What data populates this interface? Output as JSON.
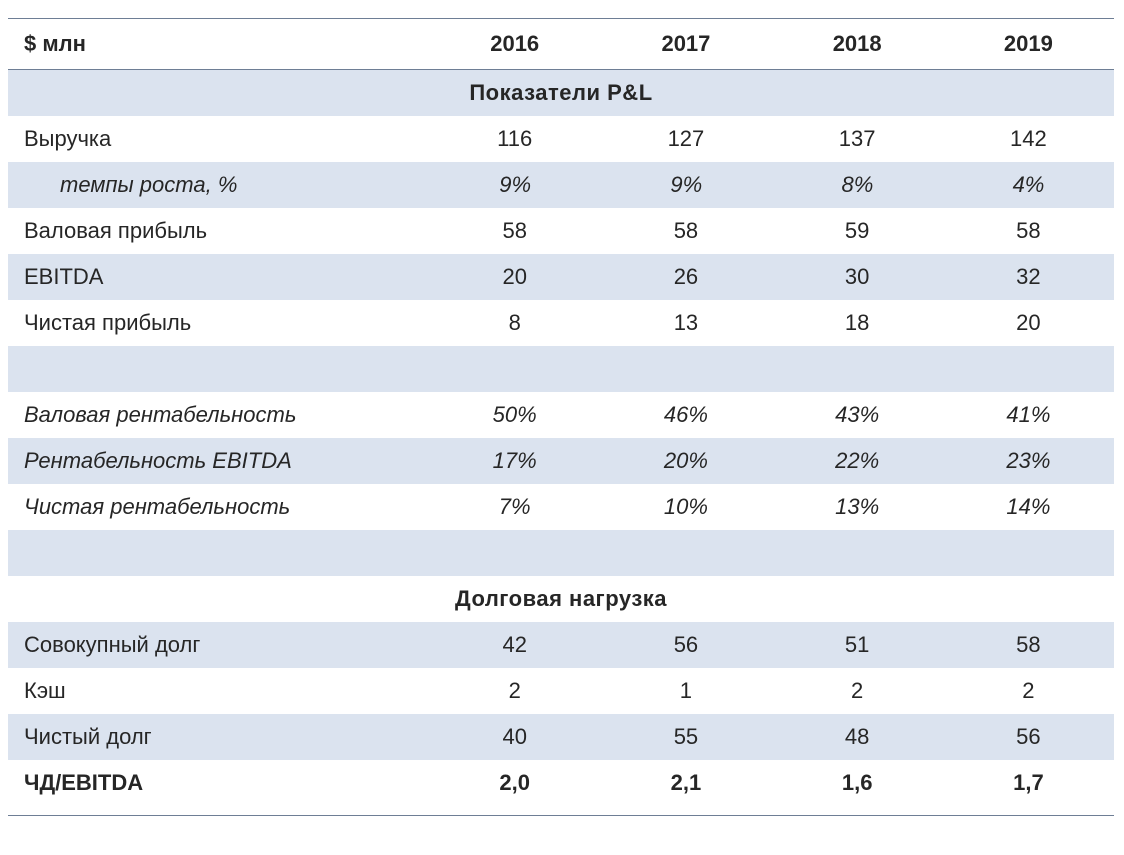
{
  "header": {
    "unit": "$ млн",
    "years": [
      "2016",
      "2017",
      "2018",
      "2019"
    ]
  },
  "sections": {
    "pl_title": "Показатели P&L",
    "debt_title": "Долговая нагрузка"
  },
  "rows": {
    "revenue": {
      "label": "Выручка",
      "values": [
        "116",
        "127",
        "137",
        "142"
      ]
    },
    "growth": {
      "label": "темпы роста, %",
      "values": [
        "9%",
        "9%",
        "8%",
        "4%"
      ]
    },
    "gross_profit": {
      "label": "Валовая прибыль",
      "values": [
        "58",
        "58",
        "59",
        "58"
      ]
    },
    "ebitda": {
      "label": "EBITDA",
      "values": [
        "20",
        "26",
        "30",
        "32"
      ]
    },
    "net_income": {
      "label": "Чистая прибыль",
      "values": [
        "8",
        "13",
        "18",
        "20"
      ]
    },
    "gross_margin": {
      "label": "Валовая рентабельность",
      "values": [
        "50%",
        "46%",
        "43%",
        "41%"
      ]
    },
    "ebitda_margin": {
      "label": "Рентабельность EBITDA",
      "values": [
        "17%",
        "20%",
        "22%",
        "23%"
      ]
    },
    "net_margin": {
      "label": "Чистая рентабельность",
      "values": [
        "7%",
        "10%",
        "13%",
        "14%"
      ]
    },
    "total_debt": {
      "label": "Совокупный долг",
      "values": [
        "42",
        "56",
        "51",
        "58"
      ]
    },
    "cash": {
      "label": "Кэш",
      "values": [
        "2",
        "1",
        "2",
        "2"
      ]
    },
    "net_debt": {
      "label": "Чистый долг",
      "values": [
        "40",
        "55",
        "48",
        "56"
      ]
    },
    "nd_ebitda": {
      "label": "ЧД/EBITDA",
      "values": [
        "2,0",
        "2,1",
        "1,6",
        "1,7"
      ]
    }
  }
}
